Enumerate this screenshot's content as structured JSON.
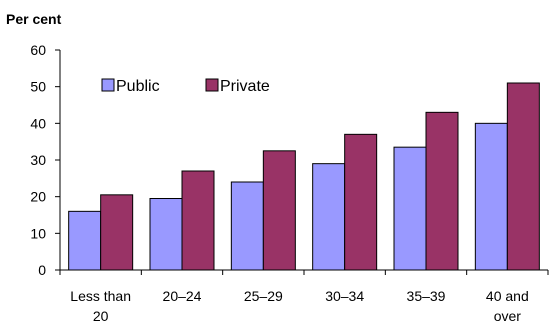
{
  "chart_data": {
    "type": "bar",
    "ylabel": "Per cent",
    "ylim": [
      0,
      60
    ],
    "yticks": [
      0,
      10,
      20,
      30,
      40,
      50,
      60
    ],
    "categories": [
      [
        "Less than",
        "20"
      ],
      [
        "20–24"
      ],
      [
        "25–29"
      ],
      [
        "30–34"
      ],
      [
        "35–39"
      ],
      [
        "40 and",
        "over"
      ]
    ],
    "series": [
      {
        "name": "Public",
        "color": "#9999ff",
        "values": [
          16,
          19.5,
          24,
          29,
          33.5,
          40
        ]
      },
      {
        "name": "Private",
        "color": "#993366",
        "values": [
          20.5,
          27,
          32.5,
          37,
          43,
          51
        ]
      }
    ],
    "legend_position": "top-left",
    "grid": false
  }
}
